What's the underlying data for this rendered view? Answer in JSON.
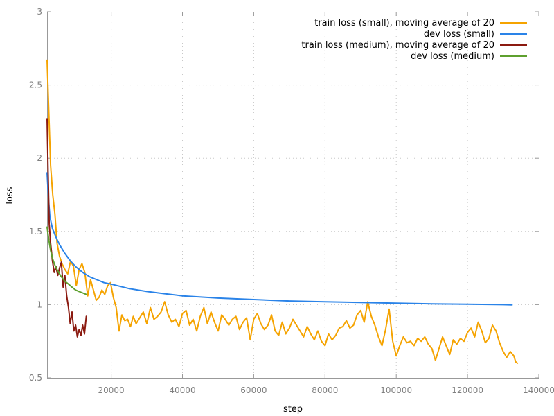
{
  "chart_data": {
    "type": "line",
    "title": "",
    "xlabel": "step",
    "ylabel": "loss",
    "xlim": [
      2000,
      140000
    ],
    "ylim": [
      0.5,
      3
    ],
    "x_ticks": [
      20000,
      40000,
      60000,
      80000,
      100000,
      120000,
      140000
    ],
    "x_tick_labels": [
      "20000",
      "40000",
      "60000",
      "80000",
      "100000",
      "120000",
      "140000"
    ],
    "y_ticks": [
      0.5,
      1,
      1.5,
      2,
      2.5,
      3
    ],
    "y_tick_labels": [
      "0.5",
      "1",
      "1.5",
      "2",
      "2.5",
      "3"
    ],
    "grid": true,
    "legend_position": "top-right",
    "series": [
      {
        "name": "train loss (small), moving average of 20",
        "color": "#f5a300",
        "x": [
          2000,
          2500,
          3000,
          3600,
          4200,
          4800,
          5500,
          6200,
          7000,
          7800,
          8600,
          9400,
          10200,
          11000,
          11800,
          12600,
          13400,
          14200,
          15000,
          15800,
          16600,
          17400,
          18200,
          19000,
          19800,
          20600,
          21400,
          22200,
          23000,
          23800,
          24600,
          25400,
          26200,
          27000,
          28000,
          29000,
          30000,
          31000,
          32000,
          33000,
          34000,
          35000,
          36000,
          37000,
          38000,
          39000,
          40000,
          41000,
          42000,
          43000,
          44000,
          45000,
          46000,
          47000,
          48000,
          49000,
          50000,
          51000,
          52000,
          53000,
          54000,
          55000,
          56000,
          57000,
          58000,
          59000,
          60000,
          61000,
          62000,
          63000,
          64000,
          65000,
          66000,
          67000,
          68000,
          69000,
          70000,
          71000,
          72000,
          73000,
          74000,
          75000,
          76000,
          77000,
          78000,
          79000,
          80000,
          81000,
          82000,
          83000,
          84000,
          85000,
          86000,
          87000,
          88000,
          89000,
          90000,
          91000,
          92000,
          93000,
          94000,
          95000,
          96000,
          97000,
          98000,
          99000,
          100000,
          101000,
          102000,
          103000,
          104000,
          105000,
          106000,
          107000,
          108000,
          109000,
          110000,
          111000,
          112000,
          113000,
          114000,
          115000,
          116000,
          117000,
          118000,
          119000,
          120000,
          121000,
          122000,
          123000,
          124000,
          125000,
          126000,
          127000,
          128000,
          129000,
          130000,
          131000,
          132000,
          133000,
          133500,
          134000
        ],
        "values": [
          2.67,
          2.3,
          1.95,
          1.75,
          1.62,
          1.42,
          1.33,
          1.28,
          1.24,
          1.21,
          1.3,
          1.26,
          1.13,
          1.24,
          1.28,
          1.22,
          1.06,
          1.17,
          1.1,
          1.03,
          1.05,
          1.1,
          1.07,
          1.13,
          1.15,
          1.05,
          0.98,
          0.82,
          0.93,
          0.89,
          0.9,
          0.85,
          0.92,
          0.87,
          0.91,
          0.95,
          0.87,
          0.98,
          0.9,
          0.92,
          0.95,
          1.02,
          0.93,
          0.88,
          0.9,
          0.85,
          0.94,
          0.96,
          0.86,
          0.9,
          0.82,
          0.92,
          0.98,
          0.87,
          0.95,
          0.88,
          0.82,
          0.93,
          0.9,
          0.86,
          0.9,
          0.92,
          0.83,
          0.88,
          0.91,
          0.76,
          0.9,
          0.94,
          0.87,
          0.83,
          0.86,
          0.93,
          0.82,
          0.79,
          0.88,
          0.8,
          0.84,
          0.9,
          0.86,
          0.82,
          0.78,
          0.85,
          0.8,
          0.76,
          0.82,
          0.75,
          0.72,
          0.8,
          0.76,
          0.79,
          0.84,
          0.85,
          0.89,
          0.84,
          0.86,
          0.93,
          0.96,
          0.88,
          1.02,
          0.92,
          0.86,
          0.78,
          0.72,
          0.83,
          0.97,
          0.75,
          0.65,
          0.72,
          0.78,
          0.74,
          0.75,
          0.72,
          0.77,
          0.75,
          0.78,
          0.73,
          0.7,
          0.62,
          0.7,
          0.78,
          0.72,
          0.66,
          0.76,
          0.73,
          0.77,
          0.75,
          0.81,
          0.84,
          0.78,
          0.88,
          0.82,
          0.74,
          0.77,
          0.86,
          0.82,
          0.74,
          0.68,
          0.64,
          0.68,
          0.65,
          0.61,
          0.6
        ]
      },
      {
        "name": "dev loss (small)",
        "color": "#2a83e8",
        "x": [
          2000,
          2400,
          2800,
          3500,
          4500,
          5500,
          7000,
          8500,
          10000,
          12000,
          14000,
          16000,
          18000,
          20000,
          25000,
          30000,
          35000,
          40000,
          50000,
          60000,
          70000,
          80000,
          90000,
          100000,
          110000,
          120000,
          130000,
          132500
        ],
        "values": [
          1.9,
          1.72,
          1.6,
          1.52,
          1.46,
          1.41,
          1.35,
          1.3,
          1.26,
          1.22,
          1.19,
          1.17,
          1.15,
          1.14,
          1.11,
          1.09,
          1.075,
          1.06,
          1.045,
          1.035,
          1.025,
          1.02,
          1.015,
          1.01,
          1.005,
          1.003,
          1.0,
          0.998
        ]
      },
      {
        "name": "train loss (medium), moving average of 20",
        "color": "#8b1a10",
        "x": [
          2000,
          2300,
          2600,
          3000,
          3500,
          4000,
          4500,
          5000,
          5500,
          6000,
          6500,
          7000,
          7500,
          8000,
          8500,
          9000,
          9500,
          10000,
          10500,
          11000,
          11500,
          12000,
          12500,
          13000
        ],
        "values": [
          2.27,
          1.9,
          1.55,
          1.42,
          1.3,
          1.22,
          1.26,
          1.2,
          1.25,
          1.29,
          1.12,
          1.2,
          1.06,
          0.98,
          0.87,
          0.95,
          0.82,
          0.86,
          0.78,
          0.83,
          0.79,
          0.86,
          0.8,
          0.92
        ]
      },
      {
        "name": "dev loss (medium)",
        "color": "#5ea02e",
        "x": [
          2000,
          2500,
          3000,
          3600,
          4200,
          5000,
          6000,
          7000,
          8000,
          9000,
          10000,
          11000,
          12000,
          13000
        ],
        "values": [
          1.53,
          1.44,
          1.37,
          1.31,
          1.27,
          1.23,
          1.19,
          1.16,
          1.14,
          1.12,
          1.1,
          1.09,
          1.08,
          1.07
        ]
      }
    ]
  }
}
